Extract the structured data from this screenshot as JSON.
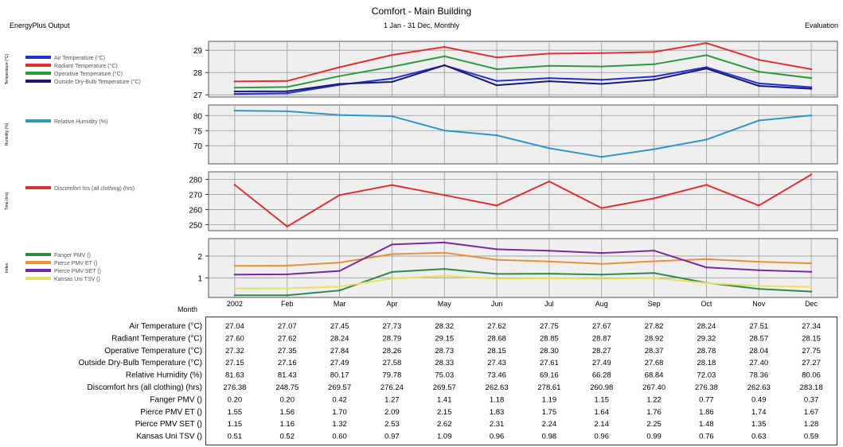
{
  "header": {
    "left": "EnergyPlus Output",
    "title": "Comfort - Main Building",
    "subtitle": "1 Jan - 31 Dec, Monthly",
    "right": "Evaluation"
  },
  "chart_data": {
    "type": "line",
    "categories": [
      "2002",
      "Feb",
      "Mar",
      "Apr",
      "May",
      "Jun",
      "Jul",
      "Aug",
      "Sep",
      "Oct",
      "Nov",
      "Dec"
    ],
    "month_label": "Month",
    "panels": [
      {
        "ylabel": "Temperature (°C)",
        "ylabel_note": "rotated axis label, barely legible in the screenshot",
        "ylim": [
          26.9,
          29.4
        ],
        "yticks": [
          "29",
          "28",
          "27"
        ],
        "ytick_values": [
          29,
          28,
          27
        ],
        "series": [
          {
            "name": "Air Temperature (°C)",
            "color": "#1f2fd6",
            "values": [
              27.04,
              27.07,
              27.45,
              27.73,
              28.32,
              27.62,
              27.75,
              27.67,
              27.82,
              28.24,
              27.51,
              27.34
            ]
          },
          {
            "name": "Radiant Temperature (°C)",
            "color": "#e03030",
            "values": [
              27.6,
              27.62,
              28.24,
              28.79,
              29.15,
              28.68,
              28.85,
              28.87,
              28.92,
              29.32,
              28.57,
              28.15
            ]
          },
          {
            "name": "Operative Temperature (°C)",
            "color": "#2e9a3c",
            "values": [
              27.32,
              27.35,
              27.84,
              28.26,
              28.73,
              28.15,
              28.3,
              28.27,
              28.37,
              28.78,
              28.04,
              27.75
            ]
          },
          {
            "name": "Outside Dry-Bulb Temperature (°C)",
            "color": "#1a1a70",
            "values": [
              27.15,
              27.16,
              27.49,
              27.58,
              28.33,
              27.43,
              27.61,
              27.49,
              27.68,
              28.18,
              27.4,
              27.27
            ]
          }
        ]
      },
      {
        "ylabel": "Humidity (%)",
        "ylabel_note": "rotated axis label, barely legible in the screenshot",
        "ylim": [
          64,
          83.5
        ],
        "yticks": [
          "80",
          "75",
          "70"
        ],
        "ytick_values": [
          80,
          75,
          70
        ],
        "series": [
          {
            "name": "Relative Humidity (%)",
            "color": "#2f97c8",
            "values": [
              81.63,
              81.43,
              80.17,
              79.78,
              75.03,
              73.46,
              69.16,
              66.28,
              68.84,
              72.03,
              78.36,
              80.06
            ]
          }
        ]
      },
      {
        "ylabel": "Time (hrs)",
        "ylabel_note": "rotated axis label, barely legible in the screenshot",
        "ylim": [
          246,
          285
        ],
        "yticks": [
          "280",
          "270",
          "260",
          "250"
        ],
        "ytick_values": [
          280,
          270,
          260,
          250
        ],
        "series": [
          {
            "name": "Discomfort hrs (all clothing) (hrs)",
            "color": "#e03030",
            "values": [
              276.38,
              248.75,
              269.57,
              276.24,
              269.57,
              262.63,
              278.61,
              260.98,
              267.4,
              276.38,
              262.63,
              283.18
            ]
          }
        ]
      },
      {
        "ylabel": "Index",
        "ylabel_note": "rotated axis label, barely legible in the screenshot",
        "ylim": [
          0.1,
          2.8
        ],
        "yticks": [
          "2",
          "1"
        ],
        "ytick_values": [
          2,
          1
        ],
        "series": [
          {
            "name": "Fanger PMV ()",
            "color": "#2e8a4a",
            "values": [
              0.2,
              0.2,
              0.42,
              1.27,
              1.41,
              1.18,
              1.19,
              1.15,
              1.22,
              0.77,
              0.49,
              0.37
            ]
          },
          {
            "name": "Pierce PMV ET ()",
            "color": "#e8903a",
            "values": [
              1.55,
              1.56,
              1.7,
              2.09,
              2.15,
              1.83,
              1.75,
              1.64,
              1.76,
              1.86,
              1.74,
              1.67
            ]
          },
          {
            "name": "Pierce PMV SET ()",
            "color": "#7a2a9a",
            "values": [
              1.15,
              1.16,
              1.32,
              2.53,
              2.62,
              2.31,
              2.24,
              2.14,
              2.25,
              1.48,
              1.35,
              1.28
            ]
          },
          {
            "name": "Kansas Uni TSV ()",
            "color": "#e8e060",
            "values": [
              0.51,
              0.52,
              0.6,
              0.97,
              1.09,
              0.96,
              0.98,
              0.96,
              0.99,
              0.76,
              0.63,
              0.59
            ]
          }
        ]
      }
    ],
    "table": {
      "rows": [
        {
          "label": "Air Temperature (°C)",
          "values": [
            "27.04",
            "27.07",
            "27.45",
            "27.73",
            "28.32",
            "27.62",
            "27.75",
            "27.67",
            "27.82",
            "28.24",
            "27.51",
            "27.34"
          ]
        },
        {
          "label": "Radiant Temperature (°C)",
          "values": [
            "27.60",
            "27.62",
            "28.24",
            "28.79",
            "29.15",
            "28.68",
            "28.85",
            "28.87",
            "28.92",
            "29.32",
            "28.57",
            "28.15"
          ]
        },
        {
          "label": "Operative Temperature (°C)",
          "values": [
            "27.32",
            "27.35",
            "27.84",
            "28.26",
            "28.73",
            "28.15",
            "28.30",
            "28.27",
            "28.37",
            "28.78",
            "28.04",
            "27.75"
          ]
        },
        {
          "label": "Outside Dry-Bulb Temperature (°C)",
          "values": [
            "27.15",
            "27.16",
            "27.49",
            "27.58",
            "28.33",
            "27.43",
            "27.61",
            "27.49",
            "27.68",
            "28.18",
            "27.40",
            "27.27"
          ]
        },
        {
          "label": "Relative Humidity (%)",
          "values": [
            "81.63",
            "81.43",
            "80.17",
            "79.78",
            "75.03",
            "73.46",
            "69.16",
            "66.28",
            "68.84",
            "72.03",
            "78.36",
            "80.06"
          ]
        },
        {
          "label": "Discomfort hrs (all clothing) (hrs)",
          "values": [
            "276.38",
            "248.75",
            "269.57",
            "276.24",
            "269.57",
            "262.63",
            "278.61",
            "260.98",
            "267.40",
            "276.38",
            "262.63",
            "283.18"
          ]
        },
        {
          "label": "Fanger PMV ()",
          "values": [
            "0.20",
            "0.20",
            "0.42",
            "1.27",
            "1.41",
            "1.18",
            "1.19",
            "1.15",
            "1.22",
            "0.77",
            "0.49",
            "0.37"
          ]
        },
        {
          "label": "Pierce PMV ET ()",
          "values": [
            "1.55",
            "1.56",
            "1.70",
            "2.09",
            "2.15",
            "1.83",
            "1.75",
            "1.64",
            "1.76",
            "1.86",
            "1.74",
            "1.67"
          ]
        },
        {
          "label": "Pierce PMV SET ()",
          "values": [
            "1.15",
            "1.16",
            "1.32",
            "2.53",
            "2.62",
            "2.31",
            "2.24",
            "2.14",
            "2.25",
            "1.48",
            "1.35",
            "1.28"
          ]
        },
        {
          "label": "Kansas Uni TSV ()",
          "values": [
            "0.51",
            "0.52",
            "0.60",
            "0.97",
            "1.09",
            "0.96",
            "0.98",
            "0.96",
            "0.99",
            "0.76",
            "0.63",
            "0.59"
          ]
        }
      ]
    },
    "grid": true,
    "legend_placement": "left"
  }
}
